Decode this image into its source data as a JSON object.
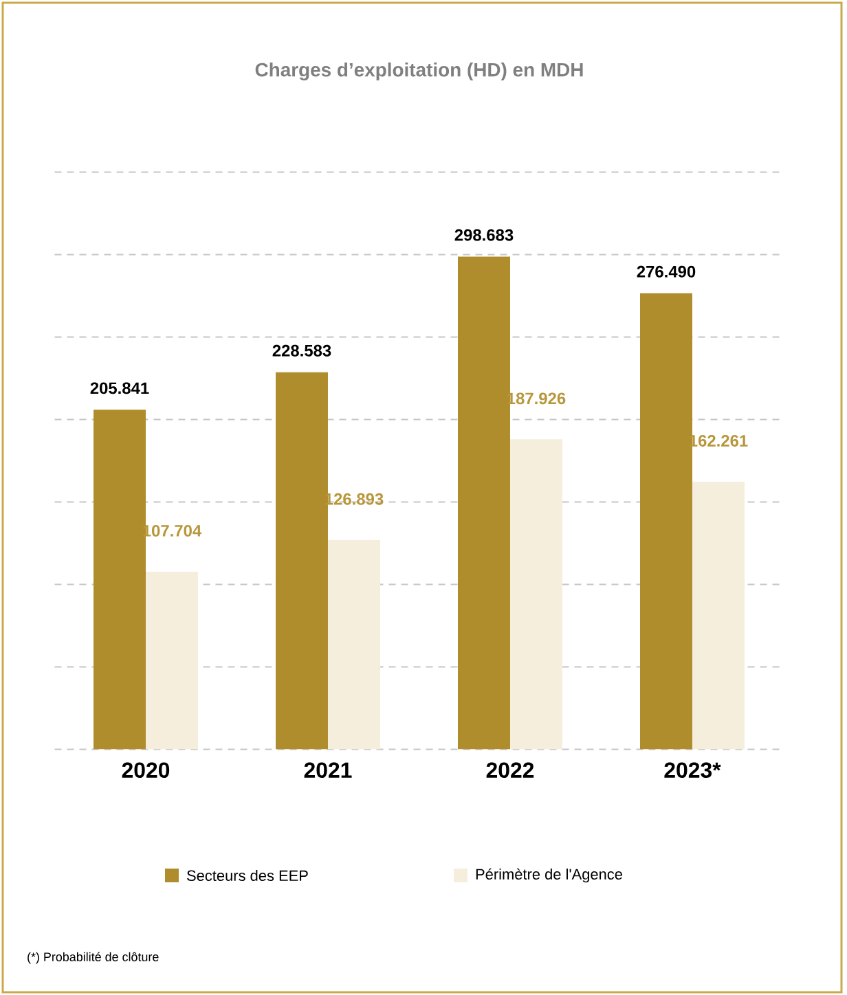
{
  "chart_data": {
    "type": "bar",
    "title": "Charges d’exploitation (HD) en MDH",
    "categories": [
      "2020",
      "2021",
      "2022",
      "2023*"
    ],
    "series": [
      {
        "name": "Secteurs des EEP",
        "color": "#b08d2c",
        "values": [
          205.841,
          228.583,
          298.683,
          276.49
        ],
        "value_labels": [
          "205.841",
          "228.583",
          "298.683",
          "276.490"
        ]
      },
      {
        "name": "Périmètre de l'Agence",
        "color": "#f6eedc",
        "values": [
          107.704,
          126.893,
          187.926,
          162.261
        ],
        "value_labels": [
          "107.704",
          "126.893",
          "187.926",
          "162.261"
        ]
      }
    ],
    "ylim": [
      0,
      350
    ],
    "yticks": [
      {
        "value": 0,
        "label": null
      },
      {
        "value": 50,
        "label": null
      },
      {
        "value": 100,
        "label": null
      },
      {
        "value": 150,
        "label": null
      },
      {
        "value": 200,
        "label": null
      },
      {
        "value": 250,
        "label": null
      },
      {
        "value": 300,
        "label": null
      },
      {
        "value": 350,
        "label": null
      }
    ],
    "grid": "y",
    "tick_labels": "x",
    "legend": "bottom",
    "annotations": [
      "(*) Probabilité de clôture"
    ]
  }
}
